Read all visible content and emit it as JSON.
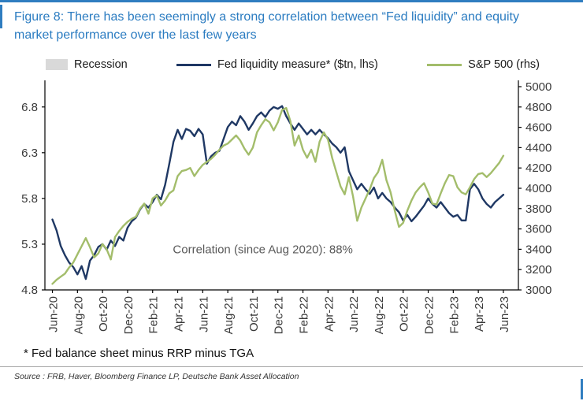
{
  "chart_data": {
    "type": "line",
    "title": "Figure 8: There has been seemingly a strong correlation between “Fed liquidity” and equity market performance over the last few years",
    "annotation": "Correlation (since Aug 2020): 88%",
    "annotation_pos": {
      "x_month": 16.8,
      "y_right": 3360
    },
    "x_tick_labels": [
      "Jun-20",
      "Aug-20",
      "Oct-20",
      "Dec-20",
      "Feb-21",
      "Apr-21",
      "Jun-21",
      "Aug-21",
      "Oct-21",
      "Dec-21",
      "Feb-22",
      "Apr-22",
      "Jun-22",
      "Aug-22",
      "Oct-22",
      "Dec-22",
      "Feb-23",
      "Apr-23",
      "Jun-23"
    ],
    "x_tick_positions": [
      0,
      2,
      4,
      6,
      8,
      10,
      12,
      14,
      16,
      18,
      20,
      22,
      24,
      26,
      28,
      30,
      32,
      34,
      36
    ],
    "x_domain": [
      -0.6,
      37.2
    ],
    "x_start": 0,
    "x_step": 0.333333,
    "ylim_left": [
      4.8,
      7.022
    ],
    "ylim_right": [
      3000,
      5000
    ],
    "yticks_left": [
      4.8,
      5.3,
      5.8,
      6.3,
      6.8
    ],
    "yticks_right": [
      3000,
      3200,
      3400,
      3600,
      3800,
      4000,
      4200,
      4400,
      4600,
      4800,
      5000
    ],
    "grid": false,
    "legend_position": "top",
    "series": [
      {
        "name": "Fed liquidity measure* ($tn, lhs)",
        "axis": "left",
        "color": "#1f3864",
        "values": [
          5.57,
          5.45,
          5.28,
          5.18,
          5.1,
          5.05,
          4.97,
          5.06,
          4.92,
          5.12,
          5.18,
          5.27,
          5.3,
          5.24,
          5.34,
          5.28,
          5.38,
          5.34,
          5.48,
          5.55,
          5.59,
          5.68,
          5.74,
          5.7,
          5.76,
          5.84,
          5.79,
          5.95,
          6.18,
          6.42,
          6.55,
          6.45,
          6.56,
          6.54,
          6.48,
          6.56,
          6.5,
          6.18,
          6.26,
          6.3,
          6.32,
          6.45,
          6.58,
          6.64,
          6.6,
          6.7,
          6.64,
          6.55,
          6.62,
          6.7,
          6.74,
          6.69,
          6.76,
          6.8,
          6.78,
          6.81,
          6.7,
          6.62,
          6.55,
          6.62,
          6.56,
          6.5,
          6.55,
          6.5,
          6.55,
          6.5,
          6.46,
          6.4,
          6.36,
          6.3,
          6.36,
          6.1,
          6.0,
          5.9,
          5.96,
          5.9,
          5.85,
          5.92,
          5.8,
          5.86,
          5.8,
          5.76,
          5.7,
          5.65,
          5.56,
          5.62,
          5.55,
          5.6,
          5.66,
          5.72,
          5.8,
          5.74,
          5.7,
          5.76,
          5.7,
          5.64,
          5.6,
          5.62,
          5.56,
          5.56,
          5.9,
          5.96,
          5.9,
          5.8,
          5.74,
          5.7,
          5.76,
          5.8,
          5.84
        ]
      },
      {
        "name": "S&P 500 (rhs)",
        "axis": "right",
        "color": "#a3bd6b",
        "values": [
          3060,
          3100,
          3130,
          3160,
          3220,
          3270,
          3350,
          3430,
          3510,
          3420,
          3320,
          3360,
          3450,
          3400,
          3300,
          3520,
          3580,
          3630,
          3670,
          3700,
          3720,
          3800,
          3850,
          3750,
          3900,
          3930,
          3830,
          3880,
          3950,
          3980,
          4120,
          4170,
          4180,
          4200,
          4120,
          4180,
          4230,
          4260,
          4290,
          4330,
          4380,
          4420,
          4440,
          4480,
          4520,
          4470,
          4390,
          4330,
          4400,
          4550,
          4620,
          4680,
          4650,
          4570,
          4650,
          4770,
          4790,
          4660,
          4420,
          4520,
          4380,
          4300,
          4380,
          4260,
          4460,
          4550,
          4480,
          4300,
          4160,
          4020,
          3940,
          4110,
          3920,
          3680,
          3810,
          3900,
          3990,
          4100,
          4160,
          4280,
          4080,
          3960,
          3780,
          3620,
          3660,
          3780,
          3880,
          3960,
          4010,
          4050,
          3960,
          3850,
          3840,
          3950,
          4050,
          4130,
          4120,
          4010,
          3960,
          3940,
          4010,
          4090,
          4140,
          4150,
          4110,
          4150,
          4200,
          4250,
          4320
        ]
      }
    ]
  },
  "legend": [
    {
      "label": "Recession",
      "type": "patch",
      "color": "#d9d9d9",
      "icon": "recession-swatch"
    },
    {
      "label": "Fed liquidity measure* ($tn, lhs)",
      "type": "line",
      "color": "#1f3864",
      "icon": "fed-liquidity-line-swatch"
    },
    {
      "label": "S&P 500 (rhs)",
      "type": "line",
      "color": "#a3bd6b",
      "icon": "sp500-line-swatch"
    }
  ],
  "footer": {
    "footnote": "* Fed balance sheet minus RRP minus TGA",
    "source": "Source : FRB, Haver, Bloomberg Finance LP, Deutsche Bank Asset Allocation"
  },
  "colors": {
    "accent_blue": "#2f7dc0",
    "title_blue": "#2b7cc1",
    "fed_line": "#1f3864",
    "sp500_line": "#a3bd6b",
    "recession": "#d9d9d9",
    "axis_text": "#3a3a3a",
    "annotation_text": "#595959"
  }
}
